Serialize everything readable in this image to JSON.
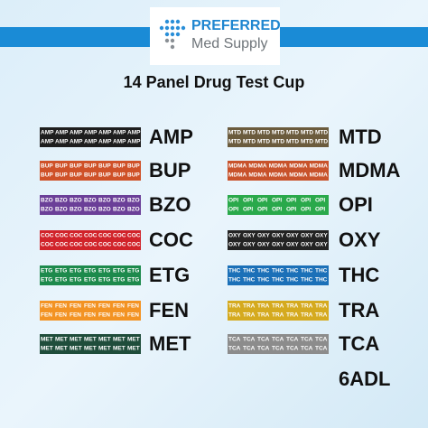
{
  "logo": {
    "brand": "PREFERRED",
    "tagline": "Med Supply"
  },
  "title": "14 Panel Drug Test Cup",
  "left_panels": [
    {
      "label": "AMP",
      "color": "#1e1e1e"
    },
    {
      "label": "BUP",
      "color": "#cf5128"
    },
    {
      "label": "BZO",
      "color": "#6b3f98"
    },
    {
      "label": "COC",
      "color": "#d1232a"
    },
    {
      "label": "ETG",
      "color": "#1d8a4c"
    },
    {
      "label": "FEN",
      "color": "#f39323"
    },
    {
      "label": "MET",
      "color": "#1f4d3b"
    }
  ],
  "right_panels": [
    {
      "label": "MTD",
      "color": "#6b5b3d"
    },
    {
      "label": "MDMA",
      "color": "#c8522b"
    },
    {
      "label": "OPI",
      "color": "#2aa94b"
    },
    {
      "label": "OXY",
      "color": "#232323"
    },
    {
      "label": "THC",
      "color": "#1b70b8"
    },
    {
      "label": "TRA",
      "color": "#d5aa1f"
    },
    {
      "label": "TCA",
      "color": "#8c8c8c"
    },
    {
      "label": "6ADL"
    }
  ]
}
